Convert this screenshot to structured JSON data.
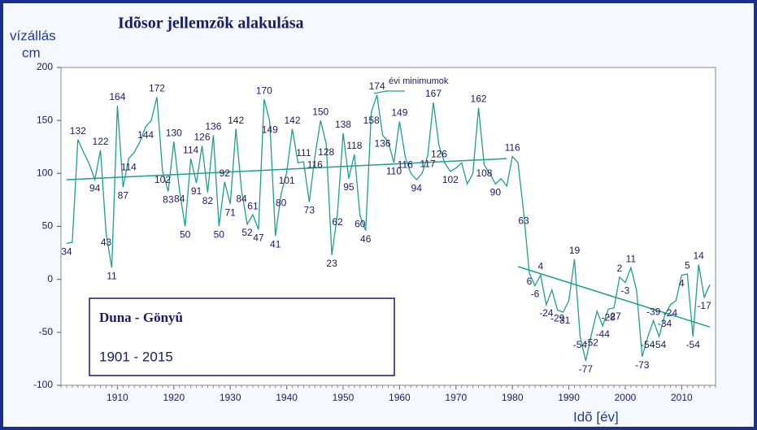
{
  "chart_data": {
    "type": "line",
    "title": "Idõsor jellemzõk alakulása",
    "y_label": [
      "vízállás",
      "cm"
    ],
    "x_label": "Idõ [év]",
    "annotation": "évi minimumok",
    "legend_box": {
      "station": "Duna - Gönyû",
      "period": "1901 - 2015"
    },
    "color": "#1f9e8f",
    "trend_color": "#1f9e8f",
    "xlim": [
      1900,
      2016
    ],
    "ylim": [
      -100,
      200
    ],
    "xticks": [
      1910,
      1920,
      1930,
      1940,
      1950,
      1960,
      1970,
      1980,
      1990,
      2000,
      2010
    ],
    "yticks": [
      -100,
      -50,
      0,
      50,
      100,
      150,
      200
    ],
    "x": [
      1901,
      1902,
      1903,
      1904,
      1905,
      1906,
      1907,
      1908,
      1909,
      1910,
      1911,
      1912,
      1913,
      1914,
      1915,
      1916,
      1917,
      1918,
      1919,
      1920,
      1921,
      1922,
      1923,
      1924,
      1925,
      1926,
      1927,
      1928,
      1929,
      1930,
      1931,
      1932,
      1933,
      1934,
      1935,
      1936,
      1937,
      1938,
      1939,
      1940,
      1941,
      1942,
      1943,
      1944,
      1945,
      1946,
      1947,
      1948,
      1949,
      1950,
      1951,
      1952,
      1953,
      1954,
      1955,
      1956,
      1957,
      1958,
      1959,
      1960,
      1961,
      1962,
      1963,
      1964,
      1965,
      1966,
      1967,
      1968,
      1969,
      1970,
      1971,
      1972,
      1973,
      1974,
      1975,
      1976,
      1977,
      1978,
      1979,
      1980,
      1981,
      1982,
      1983,
      1984,
      1985,
      1986,
      1987,
      1988,
      1989,
      1990,
      1991,
      1992,
      1993,
      1994,
      1995,
      1996,
      1997,
      1998,
      1999,
      2000,
      2001,
      2002,
      2003,
      2004,
      2005,
      2006,
      2007,
      2008,
      2009,
      2010,
      2011,
      2012,
      2013,
      2014,
      2015
    ],
    "values": [
      34,
      35,
      132,
      120,
      109,
      94,
      122,
      43,
      11,
      164,
      87,
      114,
      120,
      130,
      144,
      150,
      172,
      102,
      83,
      130,
      84,
      50,
      114,
      91,
      126,
      82,
      136,
      50,
      92,
      71,
      142,
      84,
      52,
      61,
      47,
      170,
      149,
      41,
      80,
      101,
      142,
      110,
      111,
      73,
      116,
      150,
      128,
      23,
      62,
      138,
      95,
      118,
      60,
      46,
      158,
      174,
      136,
      130,
      110,
      149,
      116,
      100,
      94,
      100,
      117,
      167,
      126,
      110,
      102,
      105,
      110,
      90,
      100,
      162,
      108,
      100,
      90,
      95,
      88,
      116,
      110,
      63,
      6,
      -6,
      4,
      -24,
      -10,
      -29,
      -31,
      -20,
      19,
      -54,
      -77,
      -52,
      -30,
      -44,
      -28,
      -27,
      2,
      -3,
      11,
      -10,
      -73,
      -54,
      -39,
      -54,
      -34,
      -24,
      -20,
      4,
      5,
      -54,
      14,
      -17,
      -5
    ],
    "value_labels": [
      "34",
      null,
      "132",
      null,
      null,
      "94",
      "122",
      "43",
      "11",
      "164",
      "87",
      "114",
      null,
      null,
      "144",
      null,
      "172",
      "102",
      "83",
      "130",
      "84",
      "50",
      "114",
      "91",
      "126",
      "82",
      "136",
      "50",
      "92",
      "71",
      "142",
      "84",
      "52",
      "61",
      "47",
      "170",
      "149",
      "41",
      "80",
      "101",
      "142",
      null,
      "111",
      "73",
      "116",
      "150",
      "128",
      "23",
      "62",
      "138",
      "95",
      "118",
      "60",
      "46",
      "158",
      "174",
      "136",
      null,
      "110",
      "149",
      "116",
      null,
      "94",
      null,
      "117",
      "167",
      "126",
      null,
      "102",
      null,
      null,
      null,
      null,
      "162",
      "108",
      null,
      "90",
      null,
      null,
      "116",
      null,
      "63",
      "6",
      "-6",
      "4",
      "-24",
      null,
      "-29",
      "-31",
      null,
      "19",
      "-54",
      "-77",
      "-52",
      null,
      "-44",
      "-28",
      "-27",
      "2",
      "-3",
      "11",
      null,
      "-73",
      "-54",
      "-39",
      "-54",
      "-34",
      "-24",
      null,
      "4",
      "5",
      "-54",
      "14",
      "-17",
      null
    ],
    "trends": [
      {
        "x": [
          1901,
          1979
        ],
        "values": [
          94,
          114
        ]
      },
      {
        "x": [
          1981,
          2015
        ],
        "values": [
          12,
          -45
        ]
      }
    ]
  }
}
